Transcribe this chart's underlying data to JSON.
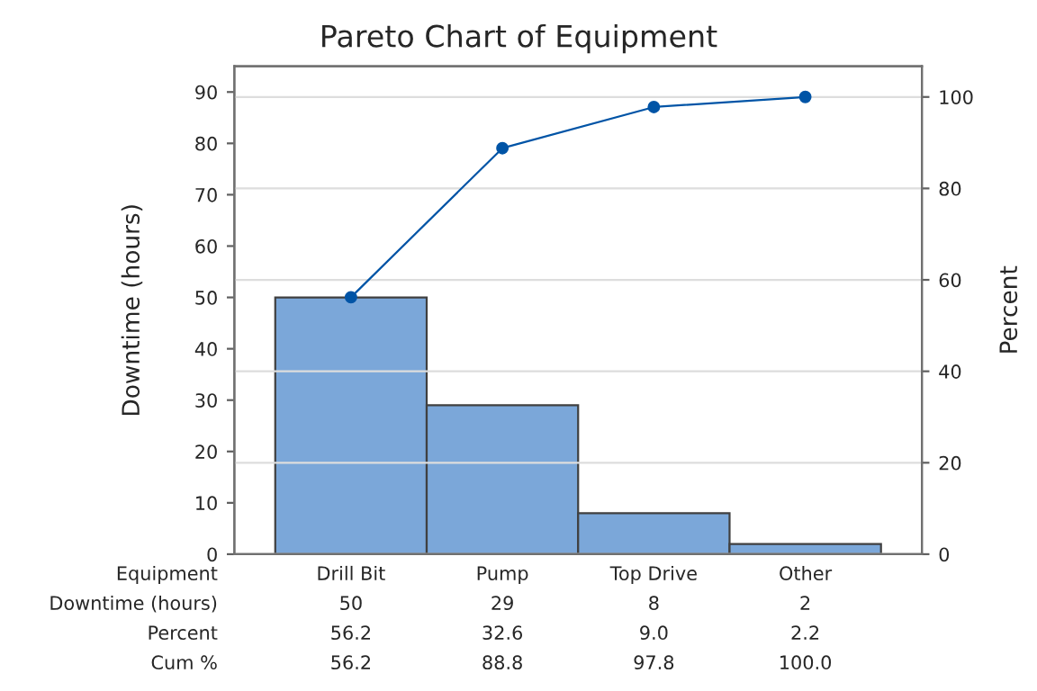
{
  "chart_data": {
    "type": "bar",
    "title": "Pareto Chart of Equipment",
    "xlabel": "Equipment",
    "ylabel": "Downtime (hours)",
    "y2label": "Percent",
    "categories": [
      "Drill Bit",
      "Pump",
      "Top Drive",
      "Other"
    ],
    "series": [
      {
        "color": "#7ba7d9",
        "values": [
          50,
          29,
          8,
          2
        ]
      },
      {
        "type": "line",
        "axis": "y2",
        "color": "#0054a6",
        "values": [
          56.2,
          88.8,
          97.8,
          100.0
        ],
        "value_labels": [
          "56.2",
          "88.8",
          "97.8",
          "100.0"
        ]
      }
    ],
    "annotations": [
      "Downtime (hours)",
      "Percent",
      "Cum %",
      "56.2",
      "32.6",
      "9.0",
      "2.2"
    ],
    "ylim": [
      0,
      95
    ],
    "yticks": [
      0,
      10,
      20,
      30,
      40,
      50,
      60,
      70,
      80,
      90
    ],
    "y2lim": [
      0,
      106.7
    ],
    "y2ticks": [
      0,
      20,
      40,
      60,
      80,
      100
    ],
    "grid": "y2",
    "marker": "circle",
    "line_style": "solid",
    "legend": false,
    "data_labels": true
  }
}
